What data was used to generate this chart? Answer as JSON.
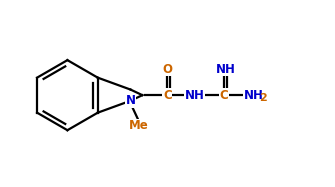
{
  "bg_color": "#ffffff",
  "bond_color": "#000000",
  "blue": "#0000cc",
  "orange": "#cc6600",
  "lw": 1.6,
  "figsize": [
    3.35,
    1.87
  ],
  "dpi": 100,
  "xlim": [
    0.0,
    10.0
  ],
  "ylim": [
    0.5,
    6.0
  ]
}
